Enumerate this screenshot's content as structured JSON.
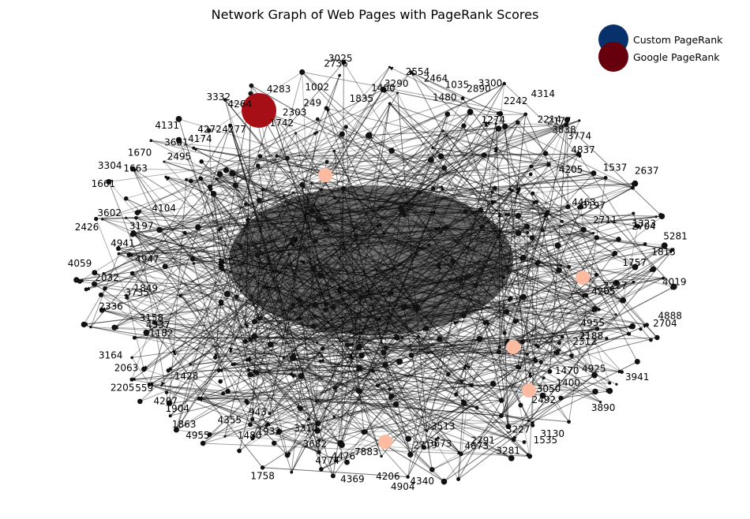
{
  "figure": {
    "title": "Network Graph of Web Pages with PageRank Scores"
  },
  "legend": {
    "placement": "top-right",
    "entries": [
      {
        "label": "Custom PageRank",
        "color": "#08306b"
      },
      {
        "label": "Google PageRank",
        "color": "#67000d"
      }
    ]
  },
  "node_colors": {
    "edge": "#000000",
    "arrow": "#000000",
    "highlight_large": "#a50f15",
    "highlight_soft": "#fcbba1"
  },
  "node_labels": [
    "4019",
    "2227",
    "4205",
    "4888",
    "2704",
    "4955",
    "2188",
    "2312",
    "3941",
    "4925",
    "1470",
    "1400",
    "3890",
    "3050",
    "2492",
    "3130",
    "1535",
    "3227",
    "3281",
    "2791",
    "4673",
    "3513",
    "3673",
    "2719",
    "4340",
    "4904",
    "4206",
    "7883",
    "4369",
    "4476",
    "4774",
    "3682",
    "3310",
    "1758",
    "1932",
    "1480",
    "943",
    "4355",
    "4955",
    "1863",
    "1904",
    "4207",
    "1428",
    "559",
    "2205",
    "2063",
    "3164",
    "1182",
    "4337",
    "3158",
    "2336",
    "3735",
    "1849",
    "2032",
    "4059",
    "4947",
    "4941",
    "2426",
    "3197",
    "3602",
    "4104",
    "1661",
    "3304",
    "1663",
    "1670",
    "2495",
    "3601",
    "4131",
    "4174",
    "4272",
    "4277",
    "3332",
    "4264",
    "1742",
    "4283",
    "2303",
    "249",
    "1002",
    "2736",
    "3025",
    "1835",
    "1400",
    "3290",
    "2554",
    "2464",
    "1480",
    "1035",
    "2890",
    "3300",
    "1274",
    "2242",
    "4314",
    "2214",
    "2177",
    "3838",
    "3774",
    "4837",
    "4205",
    "1537",
    "2637",
    "4463",
    "3197",
    "2711",
    "1323",
    "2704",
    "5281",
    "1815",
    "1757"
  ]
}
